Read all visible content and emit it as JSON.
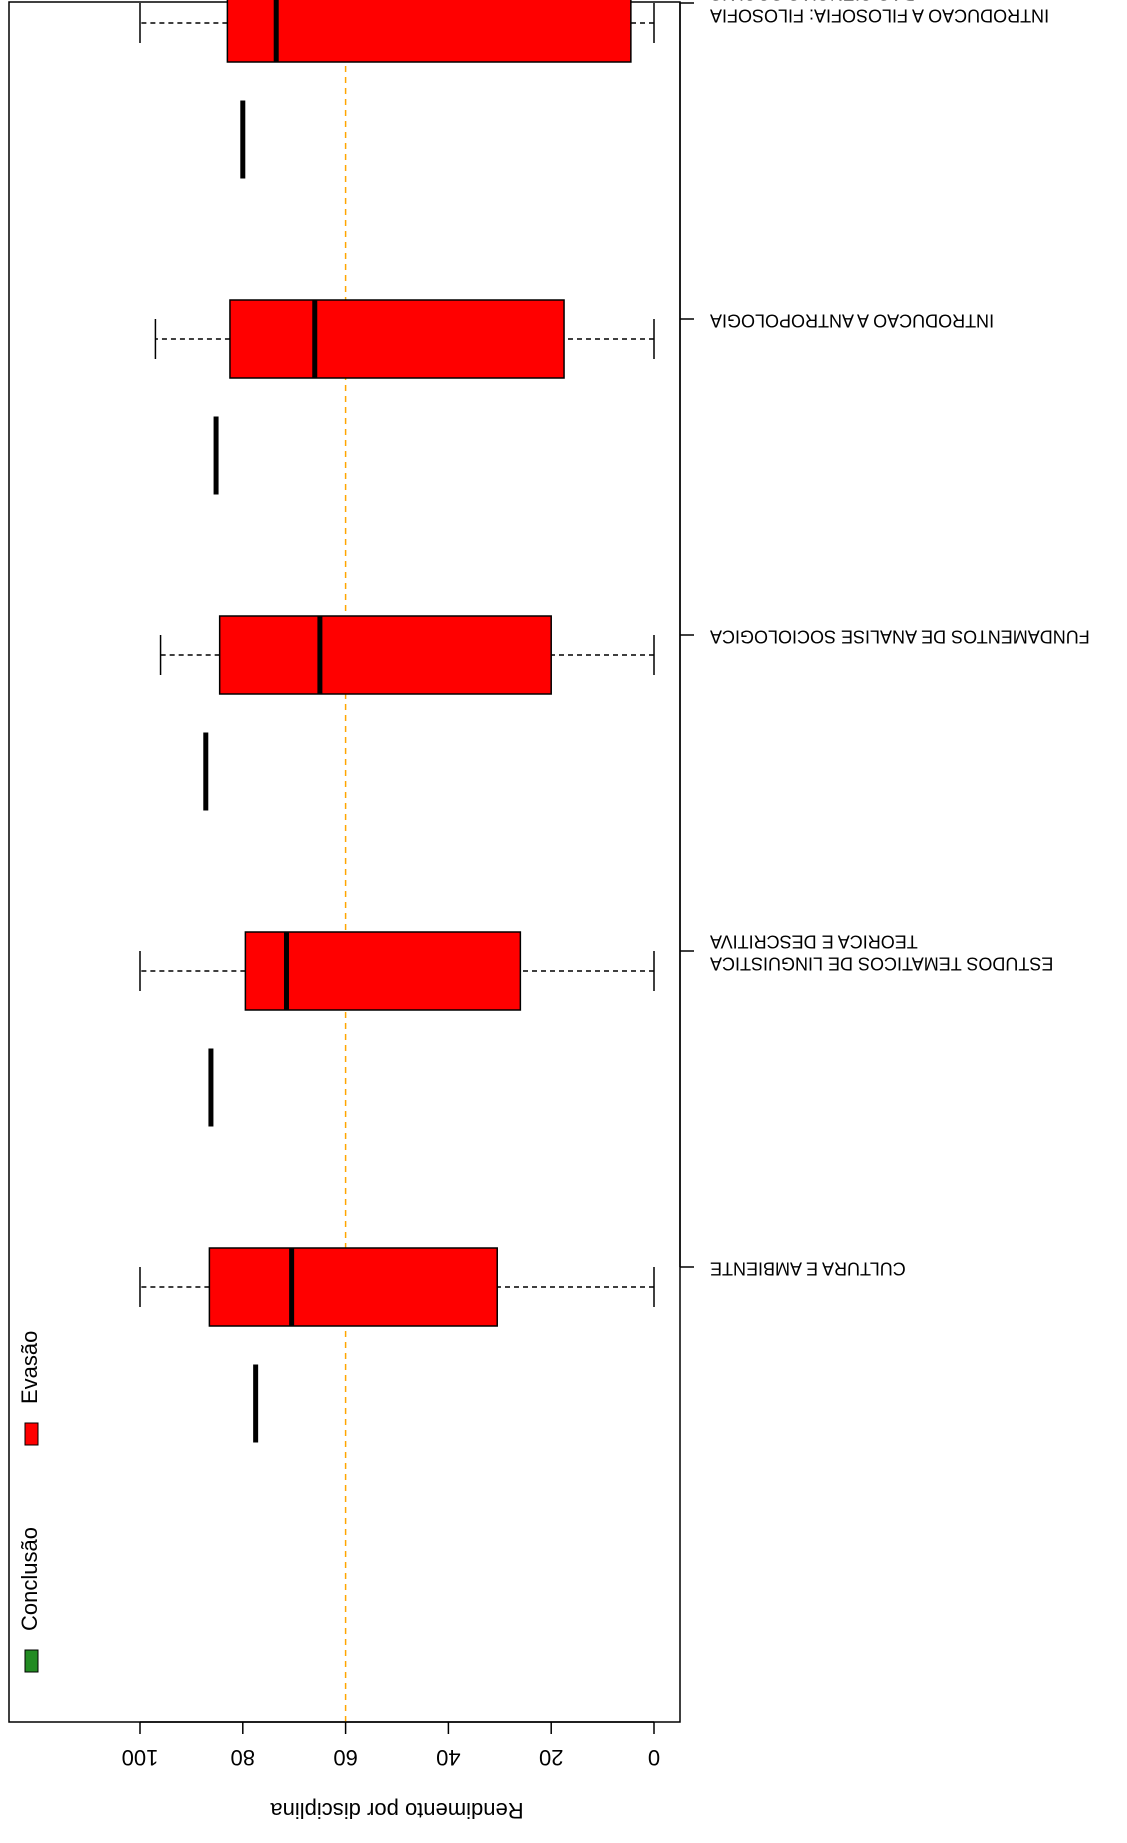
{
  "chart_data": {
    "type": "boxplot",
    "title": "",
    "xlabel": "",
    "ylabel": "Rendimento por disciplina",
    "ylim": [
      0,
      100
    ],
    "yticks": [
      0,
      20,
      40,
      60,
      80,
      100
    ],
    "reference_line": {
      "value": 60,
      "color": "#ffa500",
      "style": "dashed"
    },
    "rendering": "rotated-180",
    "legend": {
      "placement": "top-left",
      "entries": [
        {
          "label": "Conclusão",
          "color": "#228b22"
        },
        {
          "label": "Evasão",
          "color": "#ff0000"
        }
      ]
    },
    "categories": [
      {
        "lines": [
          "CULTURA E AMBIENTE"
        ]
      },
      {
        "lines": [
          "ESTUDOS TEMATICOS DE LINGUISTICA",
          "TEORICA E DESCRITIVA"
        ]
      },
      {
        "lines": [
          "FUNDAMENTOS DE ANALISE SOCIOLOGICA"
        ]
      },
      {
        "lines": [
          "INTRODUCAO A ANTROPOLOGIA"
        ]
      },
      {
        "lines": [
          "INTRODUCAO A FILOSOFIA: FILOSOFIA",
          "DAS CIENCIAS SOCIAIS"
        ]
      }
    ],
    "series": [
      {
        "name": "Conclusão",
        "color": "#228b22",
        "boxes": [
          {
            "min": 77.5,
            "q1": 77.5,
            "median": 77.5,
            "q3": 77.5,
            "max": 77.5
          },
          {
            "min": 86.2,
            "q1": 86.2,
            "median": 86.2,
            "q3": 86.2,
            "max": 86.2
          },
          {
            "min": 87.2,
            "q1": 87.2,
            "median": 87.2,
            "q3": 87.2,
            "max": 87.2
          },
          {
            "min": 85.2,
            "q1": 85.2,
            "median": 85.2,
            "q3": 85.2,
            "max": 85.2
          },
          {
            "min": 80.0,
            "q1": 80.0,
            "median": 80.0,
            "q3": 80.0,
            "max": 80.0
          }
        ]
      },
      {
        "name": "Evasão",
        "color": "#ff0000",
        "boxes": [
          {
            "min": 0,
            "q1": 30.5,
            "median": 70.5,
            "q3": 86.5,
            "max": 100
          },
          {
            "min": 0,
            "q1": 26.0,
            "median": 71.5,
            "q3": 79.5,
            "max": 100
          },
          {
            "min": 0,
            "q1": 20.0,
            "median": 65.0,
            "q3": 84.5,
            "max": 96.0
          },
          {
            "min": 0,
            "q1": 17.5,
            "median": 66.0,
            "q3": 82.5,
            "max": 97.0
          },
          {
            "min": 0,
            "q1": 4.5,
            "median": 73.5,
            "q3": 83.0,
            "max": 100
          }
        ]
      }
    ]
  }
}
